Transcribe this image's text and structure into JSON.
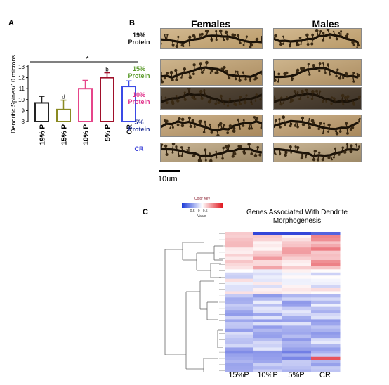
{
  "panel_a": {
    "letter": "A",
    "chart_data": {
      "type": "bar",
      "categories": [
        "19% P",
        "15% P",
        "10% P",
        "5% P",
        "CR"
      ],
      "values": [
        9.7,
        9.1,
        11.0,
        12.0,
        11.2
      ],
      "errors": [
        0.6,
        0.85,
        0.75,
        0.45,
        0.5
      ],
      "colors": [
        "#222222",
        "#8a8a22",
        "#e6458a",
        "#a0102a",
        "#3a4ae6"
      ],
      "bar_annotations": [
        "",
        "d",
        "",
        "b",
        ""
      ],
      "significance_marker": "*",
      "ylabel": "Dendritic Spines/10 microns",
      "ylim": [
        8,
        13
      ],
      "yticks": [
        "8",
        "9",
        "10",
        "11",
        "12",
        "13"
      ]
    }
  },
  "panel_b": {
    "letter": "B",
    "col_females": "Females",
    "col_males": "Males",
    "rows": [
      {
        "line1": "19%",
        "line2": "Protein",
        "color": "#111111"
      },
      {
        "line1": "15%",
        "line2": "Protein",
        "color": "#5a9a2a"
      },
      {
        "line1": "10%",
        "line2": "Protein",
        "color": "#e0308a"
      },
      {
        "line1": "5%",
        "line2": "Protein",
        "color": "#2a3a9a"
      },
      {
        "line1": "CR",
        "line2": "",
        "color": "#3a40d8"
      }
    ],
    "scale_label": "10um"
  },
  "panel_c": {
    "letter": "C",
    "key_title": "Color Key",
    "key_ticks": "-0.5   0   0.5",
    "key_value": "Value",
    "title": "Genes Associated With Dendrite Morphogenesis",
    "columns": [
      "15%P",
      "10%P",
      "5%P",
      "CR"
    ]
  }
}
